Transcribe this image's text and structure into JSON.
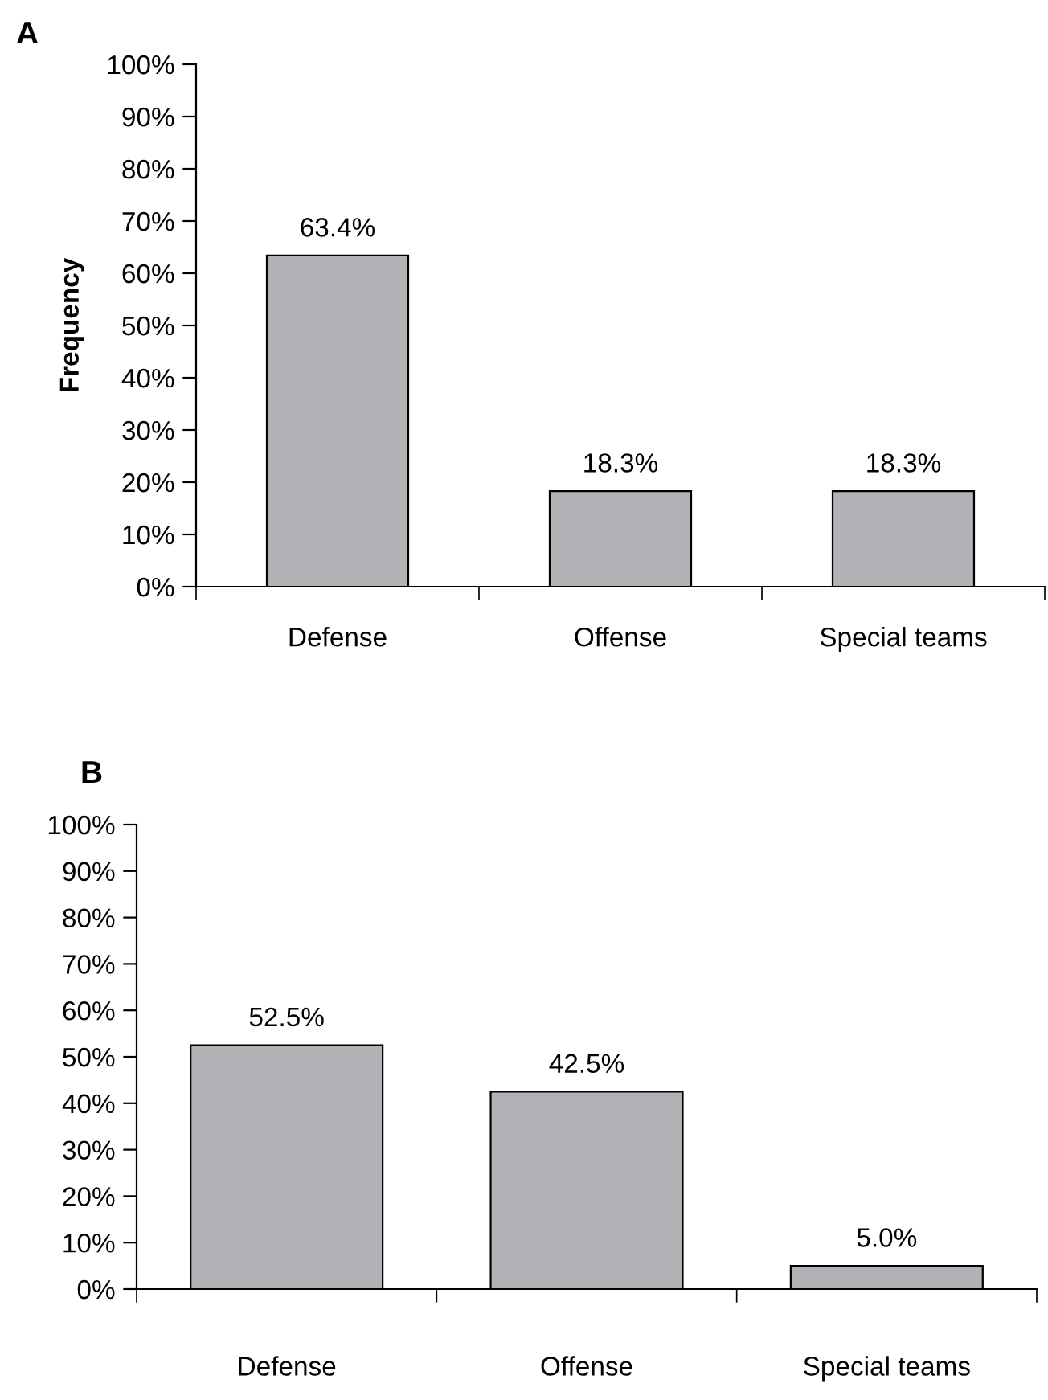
{
  "chart_data": [
    {
      "type": "bar",
      "title": "A",
      "ylabel": "Frequency",
      "categories": [
        "Defense",
        "Offense",
        "Special teams"
      ],
      "values": [
        63.4,
        18.3,
        18.3
      ],
      "value_labels": [
        "63.4%",
        "18.3%",
        "18.3%"
      ],
      "color": "#b1b2b6",
      "ylim": [
        0,
        100
      ],
      "yticks": [
        {
          "value": 0,
          "label": "0%"
        },
        {
          "value": 10,
          "label": "10%"
        },
        {
          "value": 20,
          "label": "20%"
        },
        {
          "value": 30,
          "label": "30%"
        },
        {
          "value": 40,
          "label": "40%"
        },
        {
          "value": 50,
          "label": "50%"
        },
        {
          "value": 60,
          "label": "60%"
        },
        {
          "value": 70,
          "label": "70%"
        },
        {
          "value": 80,
          "label": "80%"
        },
        {
          "value": 90,
          "label": "90%"
        },
        {
          "value": 100,
          "label": "100%"
        }
      ],
      "grid": false,
      "legend": false
    },
    {
      "type": "bar",
      "title": "B",
      "categories": [
        "Defense",
        "Offense",
        "Special teams"
      ],
      "values": [
        52.5,
        42.5,
        5.0
      ],
      "value_labels": [
        "52.5%",
        "42.5%",
        "5.0%"
      ],
      "color": "#b1b2b6",
      "ylim": [
        0,
        100
      ],
      "yticks": [
        {
          "value": 0,
          "label": "0%"
        },
        {
          "value": 10,
          "label": "10%"
        },
        {
          "value": 20,
          "label": "20%"
        },
        {
          "value": 30,
          "label": "30%"
        },
        {
          "value": 40,
          "label": "40%"
        },
        {
          "value": 50,
          "label": "50%"
        },
        {
          "value": 60,
          "label": "60%"
        },
        {
          "value": 70,
          "label": "70%"
        },
        {
          "value": 80,
          "label": "80%"
        },
        {
          "value": 90,
          "label": "90%"
        },
        {
          "value": 100,
          "label": "100%"
        }
      ],
      "grid": false,
      "legend": false
    }
  ]
}
